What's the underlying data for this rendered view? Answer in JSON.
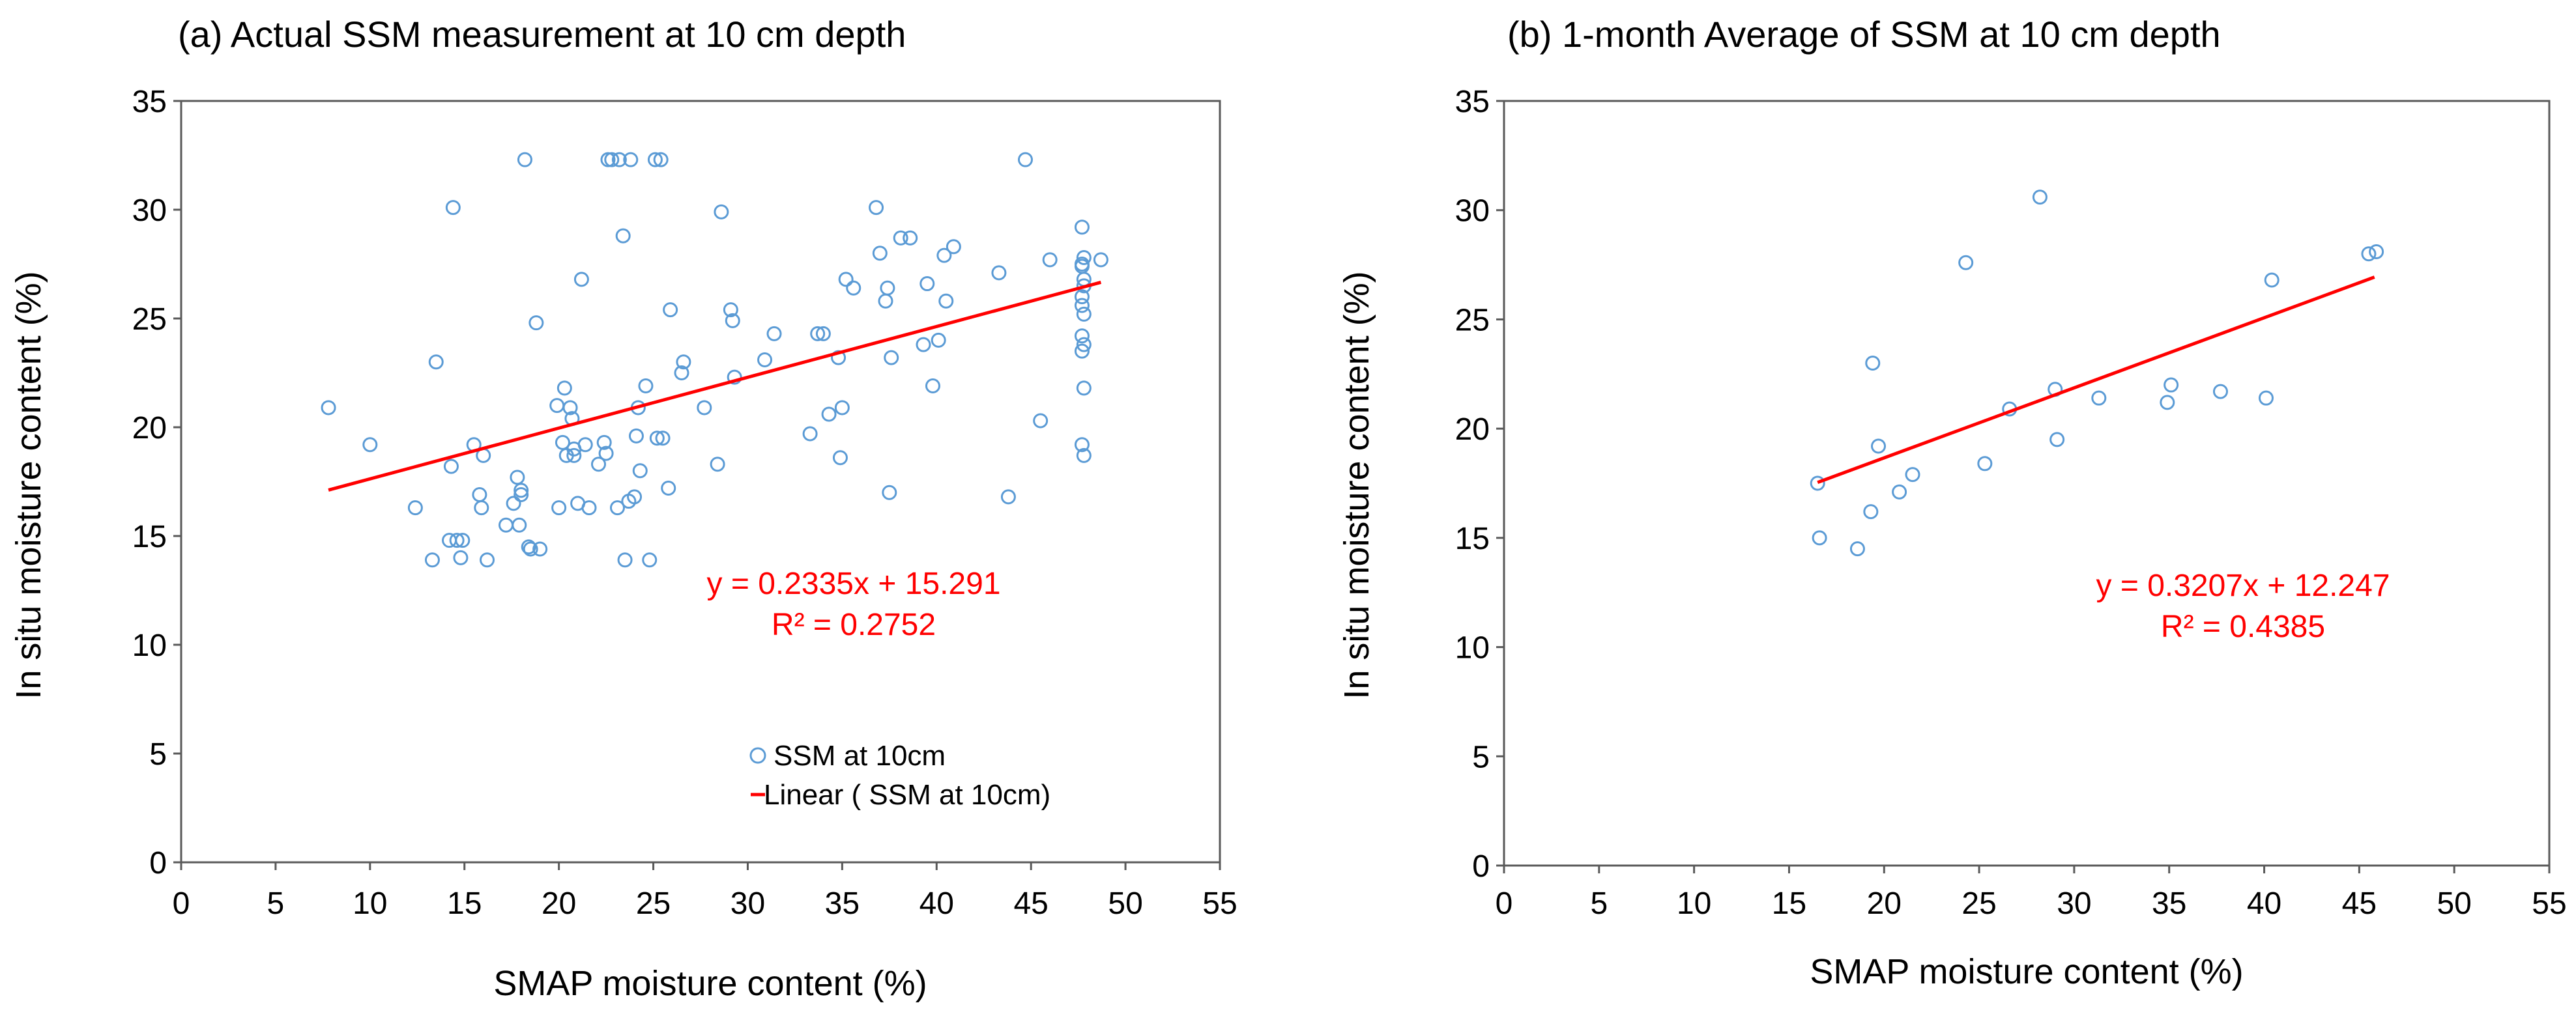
{
  "colors": {
    "marker": "#5b9bd5",
    "trendline": "#ff0000",
    "axis": "#595959",
    "text": "#000000"
  },
  "chart_data": [
    {
      "type": "scatter",
      "title": "(a) Actual SSM measurement at 10 cm depth",
      "xlabel": "SMAP moisture content (%)",
      "ylabel": "In situ moisture content (%)",
      "xlim": [
        0,
        55
      ],
      "ylim": [
        0,
        35
      ],
      "xticks": [
        0,
        5,
        10,
        15,
        20,
        25,
        30,
        35,
        40,
        45,
        50,
        55
      ],
      "yticks": [
        0,
        5,
        10,
        15,
        20,
        25,
        30,
        35
      ],
      "equation": "y = 0.2335x + 15.291",
      "r2": "R² = 0.2752",
      "trendline": {
        "slope": 0.2335,
        "intercept": 15.291,
        "x_range": [
          7.8,
          48.7
        ]
      },
      "legend": [
        "SSM at 10cm",
        "Linear ( SSM at 10cm)"
      ],
      "series": [
        {
          "name": "SSM at 10cm",
          "x": [
            7.8,
            10.0,
            12.4,
            13.3,
            13.5,
            14.2,
            14.4,
            14.3,
            14.6,
            14.9,
            14.8,
            15.5,
            15.8,
            15.9,
            16.0,
            16.2,
            17.2,
            17.6,
            17.8,
            17.9,
            18.0,
            18.0,
            18.2,
            18.4,
            18.5,
            18.8,
            19.0,
            19.9,
            20.0,
            20.2,
            20.3,
            20.4,
            20.6,
            20.7,
            20.8,
            20.8,
            21.0,
            21.2,
            21.4,
            21.6,
            22.1,
            22.4,
            22.5,
            22.6,
            22.8,
            23.1,
            23.2,
            23.4,
            23.5,
            23.7,
            23.8,
            24.0,
            24.1,
            24.2,
            24.3,
            24.6,
            24.8,
            25.1,
            25.2,
            25.4,
            25.5,
            25.8,
            25.9,
            26.5,
            26.6,
            27.7,
            28.4,
            28.6,
            29.1,
            29.2,
            29.3,
            30.9,
            31.4,
            33.3,
            33.7,
            34.0,
            34.3,
            34.8,
            34.9,
            35.0,
            35.2,
            35.6,
            36.8,
            37.0,
            37.3,
            37.4,
            37.5,
            37.6,
            38.1,
            38.6,
            39.3,
            39.5,
            39.8,
            40.1,
            40.4,
            40.5,
            40.9,
            43.3,
            43.8,
            44.7,
            45.5,
            46.0,
            47.7,
            47.8,
            47.7,
            47.8,
            47.7,
            47.8,
            47.7,
            47.8,
            47.7,
            47.8,
            47.7,
            47.8,
            47.7,
            47.8,
            47.7,
            48.7
          ],
          "y": [
            20.9,
            19.2,
            16.3,
            13.9,
            23.0,
            14.8,
            30.1,
            18.2,
            14.8,
            14.8,
            14.0,
            19.2,
            16.9,
            16.3,
            18.7,
            13.9,
            15.5,
            16.5,
            17.7,
            15.5,
            17.1,
            16.9,
            32.3,
            14.5,
            14.4,
            24.8,
            14.4,
            21.0,
            16.3,
            19.3,
            21.8,
            18.7,
            20.9,
            20.4,
            18.7,
            19.0,
            16.5,
            26.8,
            19.2,
            16.3,
            18.3,
            19.3,
            18.8,
            32.3,
            32.3,
            16.3,
            32.3,
            28.8,
            13.9,
            16.6,
            32.3,
            16.8,
            19.6,
            20.9,
            18.0,
            21.9,
            13.9,
            32.3,
            19.5,
            32.3,
            19.5,
            17.2,
            25.4,
            22.5,
            23.0,
            20.9,
            18.3,
            29.9,
            25.4,
            24.9,
            22.3,
            23.1,
            24.3,
            19.7,
            24.3,
            24.3,
            20.6,
            23.2,
            18.6,
            20.9,
            26.8,
            26.4,
            30.1,
            28.0,
            25.8,
            26.4,
            17.0,
            23.2,
            28.7,
            28.7,
            23.8,
            26.6,
            21.9,
            24.0,
            27.9,
            25.8,
            28.3,
            27.1,
            16.8,
            32.3,
            20.3,
            27.7,
            29.2,
            27.8,
            27.4,
            26.8,
            26.0,
            25.2,
            24.2,
            23.8,
            23.5,
            21.8,
            19.2,
            18.7,
            27.5,
            26.5,
            25.6,
            27.7
          ]
        }
      ]
    },
    {
      "type": "scatter",
      "title": "(b) 1-month Average of SSM at 10 cm depth",
      "xlabel": "SMAP moisture content (%)",
      "ylabel": "In situ moisture content (%)",
      "xlim": [
        0,
        55
      ],
      "ylim": [
        0,
        35
      ],
      "xticks": [
        0,
        5,
        10,
        15,
        20,
        25,
        30,
        35,
        40,
        45,
        50,
        55
      ],
      "yticks": [
        0,
        5,
        10,
        15,
        20,
        25,
        30,
        35
      ],
      "equation": "y = 0.3207x + 12.247",
      "r2": "R² = 0.4385",
      "trendline": {
        "slope": 0.3207,
        "intercept": 12.247,
        "x_range": [
          16.5,
          45.8
        ]
      },
      "series": [
        {
          "name": "1-month average",
          "x": [
            16.5,
            16.6,
            18.6,
            19.3,
            19.4,
            19.7,
            20.8,
            21.5,
            24.3,
            25.3,
            26.6,
            28.2,
            29.0,
            29.1,
            31.3,
            34.9,
            35.1,
            37.7,
            40.1,
            40.4,
            45.5,
            45.9
          ],
          "y": [
            17.5,
            15.0,
            14.5,
            16.2,
            23.0,
            19.2,
            17.1,
            17.9,
            27.6,
            18.4,
            20.9,
            30.6,
            21.8,
            19.5,
            21.4,
            21.2,
            22.0,
            21.7,
            21.4,
            26.8,
            28.0,
            28.1
          ]
        }
      ]
    }
  ]
}
